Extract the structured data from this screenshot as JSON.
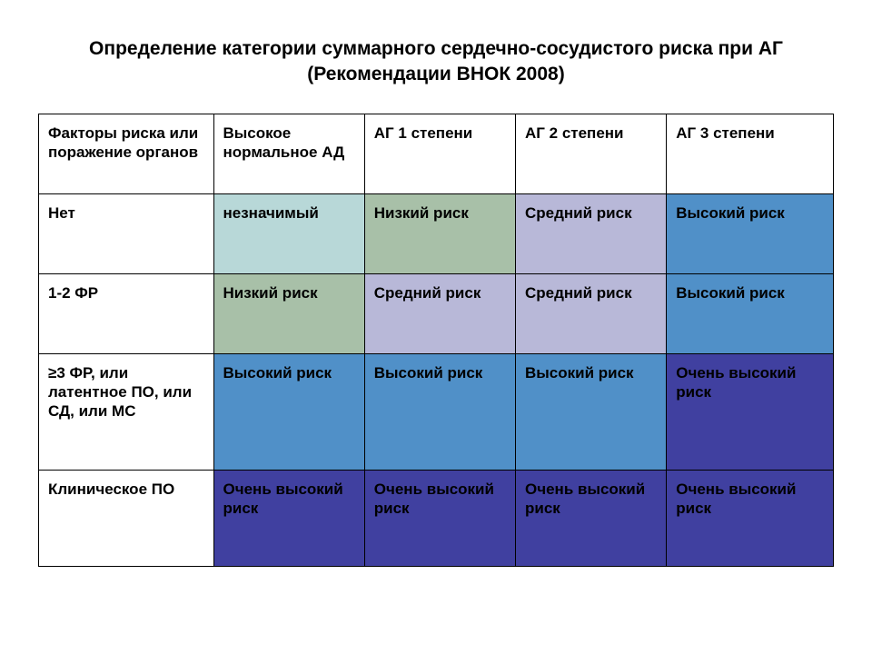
{
  "title": "Определение категории суммарного сердечно-сосудистого риска при АГ (Рекомендации ВНОК 2008)",
  "table": {
    "headers": [
      "Факторы риска или поражение органов",
      "Высокое нормальное АД",
      "АГ 1 степени",
      "АГ 2 степени",
      "АГ 3 степени"
    ],
    "rows": [
      {
        "label": "Нет",
        "cells": [
          {
            "text": "незначимый",
            "bg": "#b8d8d8"
          },
          {
            "text": "Низкий риск",
            "bg": "#a8c0a8"
          },
          {
            "text": "Средний риск",
            "bg": "#b8b8d8"
          },
          {
            "text": "Высокий риск",
            "bg": "#5090c8"
          }
        ]
      },
      {
        "label": "1-2 ФР",
        "cells": [
          {
            "text": "Низкий риск",
            "bg": "#a8c0a8"
          },
          {
            "text": "Средний риск",
            "bg": "#b8b8d8"
          },
          {
            "text": "Средний риск",
            "bg": "#b8b8d8"
          },
          {
            "text": "Высокий риск",
            "bg": "#5090c8"
          }
        ]
      },
      {
        "label": "≥3 ФР, или латентное ПО, или СД, или МС",
        "cells": [
          {
            "text": "Высокий риск",
            "bg": "#5090c8"
          },
          {
            "text": "Высокий риск",
            "bg": "#5090c8"
          },
          {
            "text": "Высокий риск",
            "bg": "#5090c8"
          },
          {
            "text": "Очень высокий риск",
            "bg": "#4040a0"
          }
        ]
      },
      {
        "label": "Клиническое ПО",
        "cells": [
          {
            "text": "Очень высокий риск",
            "bg": "#4040a0"
          },
          {
            "text": "Очень высокий риск",
            "bg": "#4040a0"
          },
          {
            "text": "Очень высокий риск",
            "bg": "#4040a0"
          },
          {
            "text": "Очень высокий риск",
            "bg": "#4040a0"
          }
        ]
      }
    ]
  }
}
